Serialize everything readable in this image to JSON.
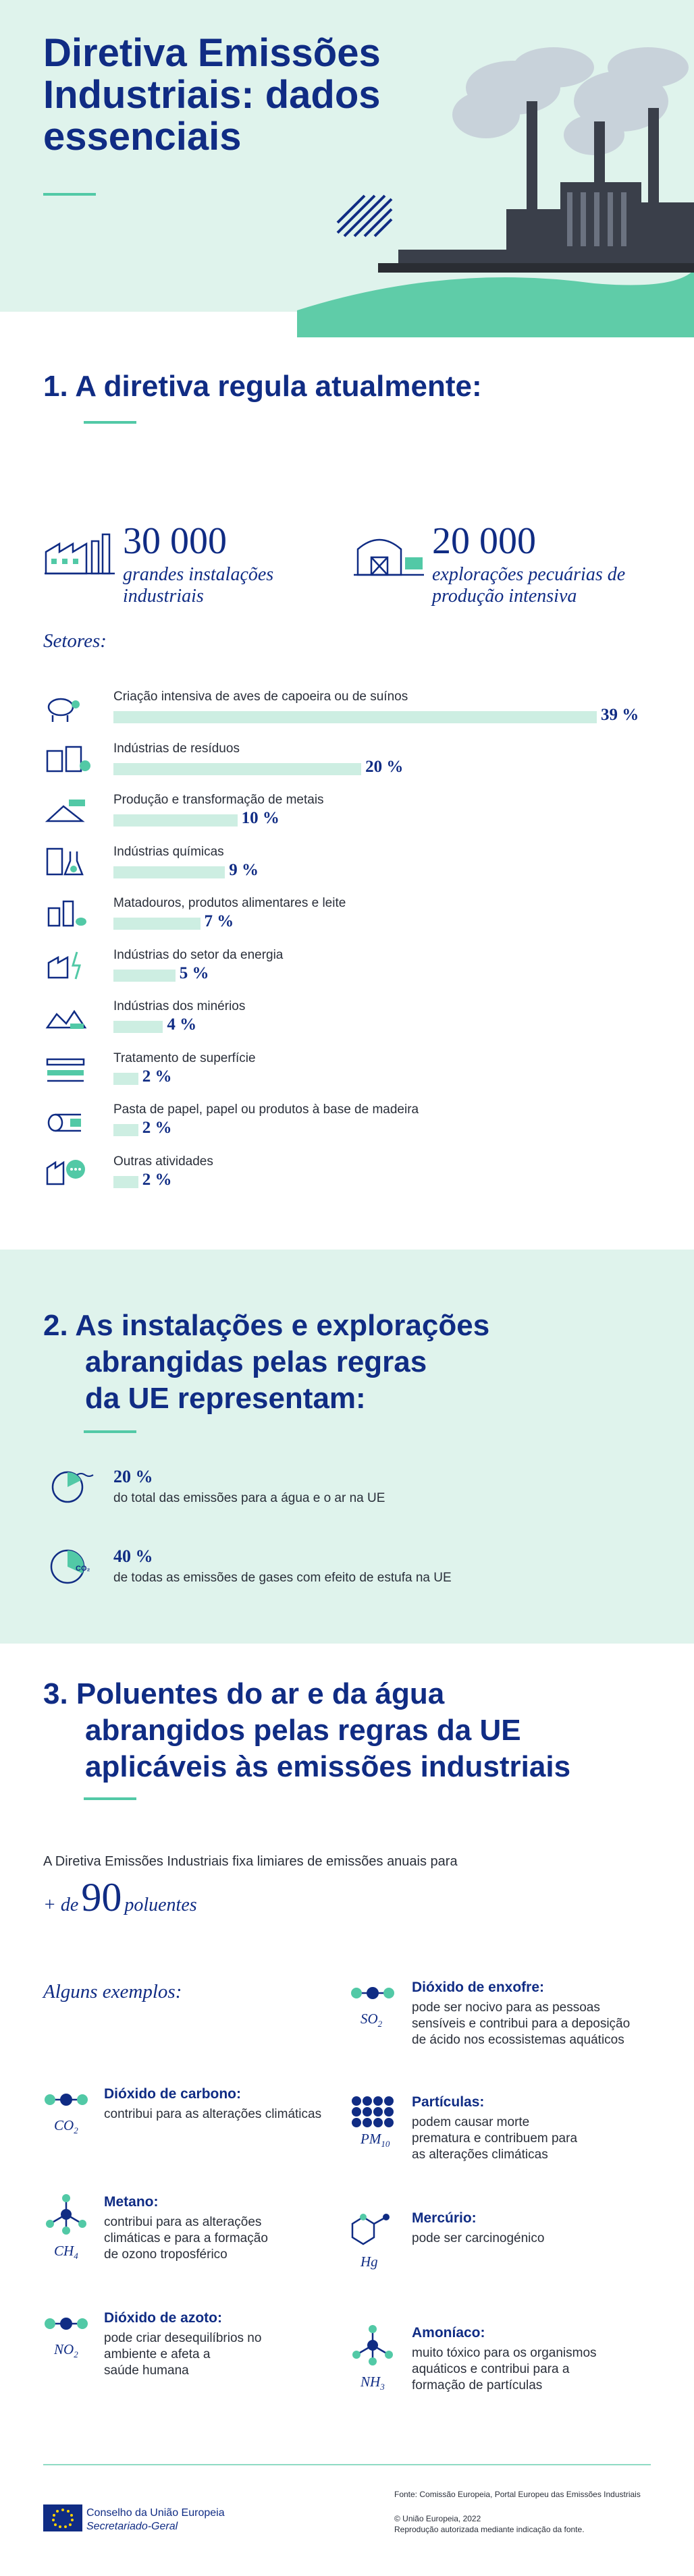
{
  "header": {
    "title": "Diretiva Emissões Industriais: dados essenciais"
  },
  "section1": {
    "heading": "1.  A diretiva regula atualmente:",
    "installations": {
      "number": "30 000",
      "label": "grandes instalações industriais"
    },
    "farms": {
      "number": "20 000",
      "label": "explorações pecuárias de produção intensiva"
    },
    "sectors_heading": "Setores:",
    "sectors": [
      {
        "name": "Criação intensiva de aves de capoeira ou de suínos",
        "pct_label": "39 %",
        "value": 39,
        "icon": "poultry-pig-icon"
      },
      {
        "name": "Indústrias de resíduos",
        "pct_label": "20 %",
        "value": 20,
        "icon": "waste-icon"
      },
      {
        "name": "Produção e transformação de metais",
        "pct_label": "10 %",
        "value": 10,
        "icon": "metal-icon"
      },
      {
        "name": "Indústrias químicas",
        "pct_label": "9 %",
        "value": 9,
        "icon": "chemical-icon"
      },
      {
        "name": "Matadouros, produtos alimentares e leite",
        "pct_label": "7 %",
        "value": 7,
        "icon": "food-icon"
      },
      {
        "name": "Indústrias do setor da energia",
        "pct_label": "5 %",
        "value": 5,
        "icon": "energy-icon"
      },
      {
        "name": "Indústrias dos minérios",
        "pct_label": "4 %",
        "value": 4,
        "icon": "minerals-icon"
      },
      {
        "name": "Tratamento de superfície",
        "pct_label": "2 %",
        "value": 2,
        "icon": "surface-treatment-icon"
      },
      {
        "name": "Pasta de papel, papel ou produtos à base de madeira",
        "pct_label": "2 %",
        "value": 2,
        "icon": "paper-wood-icon"
      },
      {
        "name": "Outras atividades",
        "pct_label": "2 %",
        "value": 2,
        "icon": "other-activities-icon"
      }
    ]
  },
  "section2": {
    "heading_lines": [
      "2.  As instalações e explorações",
      "abrangidas pelas regras",
      "da UE representam:"
    ],
    "stats": [
      {
        "pct": "20 %",
        "text": "do total das emissões para a água e o ar na UE",
        "value": 20,
        "icon": "water-air-pie-icon"
      },
      {
        "pct": "40 %",
        "text": "de todas as emissões de gases com efeito de estufa na UE",
        "value": 40,
        "icon": "co2-pie-icon"
      }
    ]
  },
  "section3": {
    "heading_lines": [
      "3.  Poluentes do ar e da água",
      "abrangidos pelas regras da UE",
      "aplicáveis às emissões industriais"
    ],
    "intro": "A Diretiva Emissões Industriais fixa limiares de emissões anuais para",
    "plus_de": "+ de",
    "count": "90",
    "poluentes": "poluentes",
    "examples_heading": "Alguns exemplos:",
    "pollutants_left": [
      {
        "title": "Dióxido de carbono:",
        "desc": [
          "contribui para as alterações climáticas"
        ],
        "formula": "CO",
        "sub": "2",
        "icon": "co2-molecule-icon"
      },
      {
        "title": "Metano:",
        "desc": [
          "contribui para as alterações",
          "climáticas e para a formação",
          "de ozono troposférico"
        ],
        "formula": "CH",
        "sub": "4",
        "icon": "ch4-molecule-icon"
      },
      {
        "title": "Dióxido de azoto:",
        "desc": [
          "pode criar desequilíbrios no",
          "ambiente e afeta a",
          "saúde humana"
        ],
        "formula": "NO",
        "sub": "2",
        "icon": "no2-molecule-icon"
      }
    ],
    "pollutants_right": [
      {
        "title": "Dióxido de enxofre:",
        "desc": [
          "pode ser nocivo para as pessoas",
          "sensíveis e contribui para a deposição",
          "de ácido nos ecossistemas aquáticos"
        ],
        "formula": "SO",
        "sub": "2",
        "icon": "so2-molecule-icon"
      },
      {
        "title": "Partículas:",
        "desc": [
          "podem causar morte",
          "prematura e contribuem para",
          "as alterações climáticas"
        ],
        "formula": "PM",
        "sub": "10",
        "icon": "particles-icon"
      },
      {
        "title": "Mercúrio:",
        "desc": [
          "pode ser carcinogénico"
        ],
        "formula": "Hg",
        "sub": "",
        "icon": "mercury-molecule-icon"
      },
      {
        "title": "Amoníaco:",
        "desc": [
          "muito tóxico para os organismos",
          "aquáticos e contribui para a",
          "formação de partículas"
        ],
        "formula": "NH",
        "sub": "3",
        "icon": "nh3-molecule-icon"
      }
    ]
  },
  "footer": {
    "org": "Conselho da União Europeia",
    "sub": "Secretariado-Geral",
    "source": "Fonte: Comissão Europeia, Portal Europeu das Emissões Industriais",
    "copyright": "© União Europeia, 2022",
    "reproduction": "Reprodução autorizada mediante indicação da fonte."
  },
  "colors": {
    "navy": "#102c84",
    "mint": "#dff3ec",
    "bar": "#cdeee2",
    "accent": "#52c9a6"
  }
}
